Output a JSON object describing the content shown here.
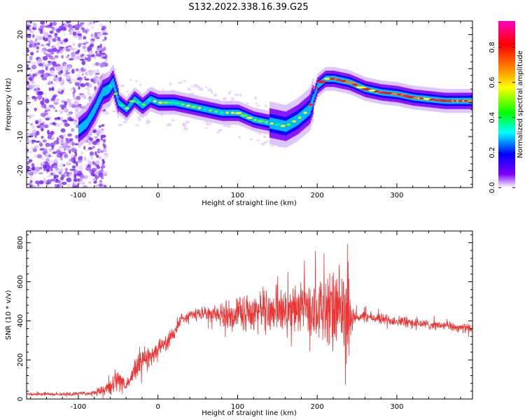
{
  "title": "S132.2022.338.16.39.G25",
  "chart_data": [
    {
      "type": "heatmap",
      "xlabel": "Height of straight line (km)",
      "ylabel": "Frequency (Hz)",
      "xlim": [
        -165,
        395
      ],
      "ylim": [
        -25,
        24
      ],
      "xticks": [
        -100,
        0,
        100,
        200,
        300
      ],
      "yticks": [
        -20,
        -10,
        0,
        10,
        20
      ],
      "colorbar": {
        "label": "Normalized spectral amplitude",
        "range": [
          0,
          0.95
        ],
        "ticks": [
          0.0,
          0.2,
          0.4,
          0.6,
          0.8
        ],
        "tick_labels": [
          "0.0",
          "0.2",
          "0.4",
          "0.6",
          "0.8"
        ],
        "colors": [
          "#ffffff",
          "#8000ff",
          "#0000ff",
          "#00ffff",
          "#00ff00",
          "#ffff00",
          "#ff8000",
          "#ff0000",
          "#ff00c0"
        ]
      },
      "ridge": {
        "x": [
          -100,
          -90,
          -80,
          -70,
          -62,
          -57,
          -50,
          -40,
          -30,
          -20,
          -10,
          0,
          20,
          40,
          60,
          80,
          100,
          120,
          140,
          160,
          175,
          190,
          200,
          210,
          220,
          240,
          260,
          280,
          300,
          320,
          340,
          360,
          380,
          395
        ],
        "y": [
          -8,
          -6,
          -2,
          3,
          4,
          6,
          0,
          -2,
          1,
          -1,
          1,
          0,
          0,
          -1,
          -2,
          -3,
          -3,
          -5,
          -6,
          -7,
          -5,
          -2,
          5,
          7,
          7,
          6,
          4,
          3,
          2.5,
          1.5,
          1,
          0.5,
          0.5,
          0.5
        ]
      }
    },
    {
      "type": "line",
      "xlabel": "Height of straight line (km)",
      "ylabel": "SNR (10 * v/v)",
      "xlim": [
        -165,
        395
      ],
      "ylim": [
        0,
        860
      ],
      "xticks": [
        -100,
        0,
        100,
        200,
        300
      ],
      "yticks": [
        0,
        200,
        400,
        600,
        800
      ],
      "color": "#ee3333",
      "x": [
        -165,
        -120,
        -80,
        -60,
        -50,
        -40,
        -30,
        -20,
        -10,
        0,
        10,
        20,
        30,
        40,
        60,
        80,
        100,
        120,
        140,
        160,
        180,
        200,
        220,
        240,
        245,
        260,
        280,
        300,
        320,
        340,
        360,
        380,
        395
      ],
      "y": [
        25,
        25,
        30,
        60,
        110,
        60,
        150,
        190,
        220,
        260,
        290,
        340,
        410,
        430,
        440,
        430,
        440,
        450,
        460,
        450,
        460,
        470,
        440,
        440,
        420,
        420,
        410,
        400,
        390,
        380,
        375,
        365,
        360
      ],
      "spread": [
        8,
        8,
        10,
        40,
        80,
        30,
        60,
        70,
        60,
        50,
        40,
        40,
        30,
        30,
        40,
        60,
        80,
        100,
        120,
        120,
        140,
        160,
        240,
        200,
        40,
        30,
        30,
        30,
        30,
        25,
        25,
        25,
        25
      ]
    }
  ]
}
